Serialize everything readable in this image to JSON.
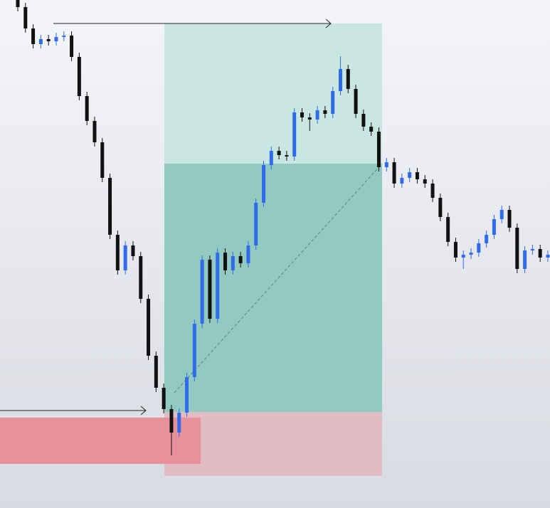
{
  "chart_data": {
    "type": "candlestick",
    "open": [
      714,
      704,
      674,
      652,
      659,
      656,
      662,
      664,
      634,
      579,
      544,
      514,
      464,
      384,
      334,
      369,
      354,
      294,
      214,
      169,
      139,
      106,
      134,
      184,
      259,
      349,
      266,
      359,
      334,
      354,
      344,
      369,
      429,
      482,
      502,
      496,
      494,
      556,
      549,
      546,
      559,
      554,
      586,
      617,
      589,
      554,
      536,
      529,
      479,
      486,
      456,
      464,
      472,
      462,
      456,
      436,
      409,
      374,
      352,
      356,
      359,
      372,
      384,
      406,
      419,
      394,
      336,
      362,
      364,
      352
    ],
    "high": [
      720,
      710,
      680,
      665,
      665,
      668,
      670,
      670,
      640,
      585,
      550,
      520,
      470,
      390,
      375,
      375,
      360,
      300,
      220,
      175,
      145,
      140,
      190,
      265,
      355,
      355,
      365,
      365,
      360,
      360,
      375,
      435,
      488,
      508,
      508,
      502,
      562,
      562,
      555,
      565,
      565,
      592,
      635,
      623,
      595,
      560,
      542,
      535,
      492,
      492,
      470,
      478,
      478,
      468,
      462,
      442,
      415,
      380,
      362,
      365,
      378,
      390,
      412,
      425,
      425,
      400,
      368,
      370,
      370,
      362
    ],
    "low": [
      698,
      668,
      646,
      646,
      650,
      650,
      656,
      628,
      573,
      538,
      508,
      458,
      378,
      328,
      328,
      348,
      288,
      208,
      163,
      133,
      74,
      100,
      128,
      178,
      253,
      260,
      260,
      328,
      328,
      338,
      338,
      363,
      423,
      476,
      490,
      488,
      488,
      543,
      530,
      540,
      548,
      548,
      580,
      583,
      548,
      530,
      523,
      473,
      473,
      450,
      450,
      458,
      456,
      450,
      430,
      403,
      368,
      346,
      336,
      350,
      353,
      366,
      378,
      400,
      388,
      330,
      330,
      356,
      346,
      346
    ],
    "close": [
      704,
      674,
      652,
      659,
      656,
      662,
      664,
      634,
      579,
      544,
      514,
      464,
      384,
      334,
      369,
      354,
      294,
      214,
      169,
      139,
      106,
      134,
      184,
      259,
      349,
      266,
      359,
      334,
      354,
      344,
      369,
      429,
      482,
      502,
      496,
      494,
      556,
      549,
      546,
      559,
      554,
      586,
      617,
      589,
      554,
      536,
      529,
      479,
      486,
      456,
      464,
      472,
      462,
      456,
      436,
      409,
      374,
      352,
      356,
      359,
      372,
      384,
      406,
      419,
      394,
      336,
      362,
      364,
      352,
      356
    ],
    "ylim": [
      0,
      714
    ],
    "up_color": "#2f6bea",
    "down_color": "#111111"
  }
}
